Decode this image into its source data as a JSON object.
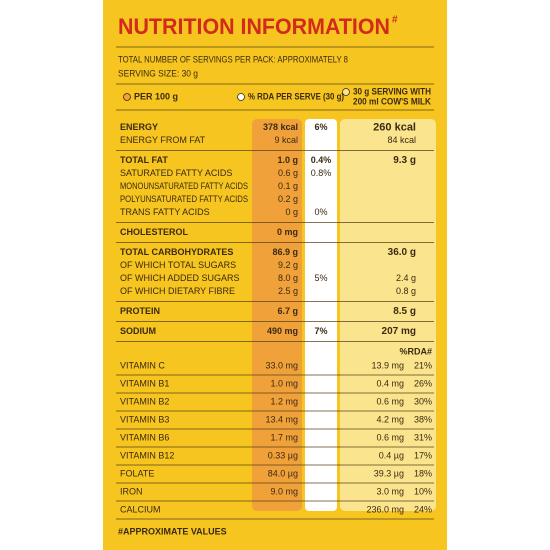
{
  "header": {
    "title": "NUTRITION INFORMATION",
    "title_mark": "#",
    "servings": "TOTAL NUMBER OF SERVINGS PER PACK: APPROXIMATELY 8",
    "serving_size": "SERVING SIZE: 30 g"
  },
  "legend": [
    {
      "label": [
        "PER 100 g"
      ]
    },
    {
      "label": [
        "% RDA PER SERVE (30 g)"
      ]
    },
    {
      "label": [
        "30 g SERVING WITH",
        "200 ml COW'S MILK"
      ]
    }
  ],
  "sections": [
    [
      {
        "name": "ENERGY",
        "per_100g": "378 kcal",
        "rda": "6%",
        "serving": "260 kcal"
      },
      {
        "name": "ENERGY FROM FAT",
        "per_100g": "9 kcal",
        "serving": "84 kcal"
      }
    ],
    [
      {
        "name": "TOTAL FAT",
        "per_100g": "1.0 g",
        "rda": "0.4%",
        "serving": "9.3 g"
      },
      {
        "name": "SATURATED FATTY ACIDS",
        "per_100g": "0.6 g",
        "rda": "0.8%"
      },
      {
        "name": "MONOUNSATURATED FATTY ACIDS",
        "per_100g": "0.1 g"
      },
      {
        "name": "POLYUNSATURATED FATTY ACIDS",
        "per_100g": "0.2 g"
      },
      {
        "name": "TRANS FATTY ACIDS",
        "per_100g": "0 g",
        "rda": "0%"
      }
    ],
    [
      {
        "name": "CHOLESTEROL",
        "per_100g": "0 mg"
      }
    ],
    [
      {
        "name": "TOTAL CARBOHYDRATES",
        "per_100g": "86.9 g",
        "serving": "36.0 g"
      },
      {
        "name": "OF WHICH TOTAL SUGARS",
        "per_100g": "9.2 g"
      },
      {
        "name": "OF WHICH ADDED SUGARS",
        "per_100g": "8.0 g",
        "rda": "5%",
        "serving": "2.4 g"
      },
      {
        "name": "OF WHICH DIETARY FIBRE",
        "per_100g": "2.5 g",
        "serving": "0.8 g"
      }
    ],
    [
      {
        "name": "PROTEIN",
        "per_100g": "6.7 g",
        "serving": "8.5 g"
      }
    ],
    [
      {
        "name": "SODIUM",
        "per_100g": "490 mg",
        "rda": "7%",
        "serving": "207 mg"
      }
    ]
  ],
  "vitamins": {
    "header": "%RDA#",
    "rows": [
      {
        "name": "VITAMIN C",
        "per_100g": "33.0 mg",
        "serving": "13.9 mg",
        "serving_rda": "21%"
      },
      {
        "name": "VITAMIN B1",
        "per_100g": "1.0 mg",
        "serving": "0.4 mg",
        "serving_rda": "26%"
      },
      {
        "name": "VITAMIN B2",
        "per_100g": "1.2 mg",
        "serving": "0.6 mg",
        "serving_rda": "30%"
      },
      {
        "name": "VITAMIN B3",
        "per_100g": "13.4 mg",
        "serving": "4.2 mg",
        "serving_rda": "38%"
      },
      {
        "name": "VITAMIN B6",
        "per_100g": "1.7 mg",
        "serving": "0.6 mg",
        "serving_rda": "31%"
      },
      {
        "name": "VITAMIN B12",
        "per_100g": "0.33 µg",
        "serving": "0.4 µg",
        "serving_rda": "17%"
      },
      {
        "name": "FOLATE",
        "per_100g": "84.0 µg",
        "serving": "39.3 µg",
        "serving_rda": "18%"
      },
      {
        "name": "IRON",
        "per_100g": "9.0 mg",
        "serving": "3.0 mg",
        "serving_rda": "10%"
      },
      {
        "name": "CALCIUM",
        "serving": "236.0 mg",
        "serving_rda": "24%"
      }
    ]
  },
  "footnote": "#APPROXIMATE VALUES"
}
